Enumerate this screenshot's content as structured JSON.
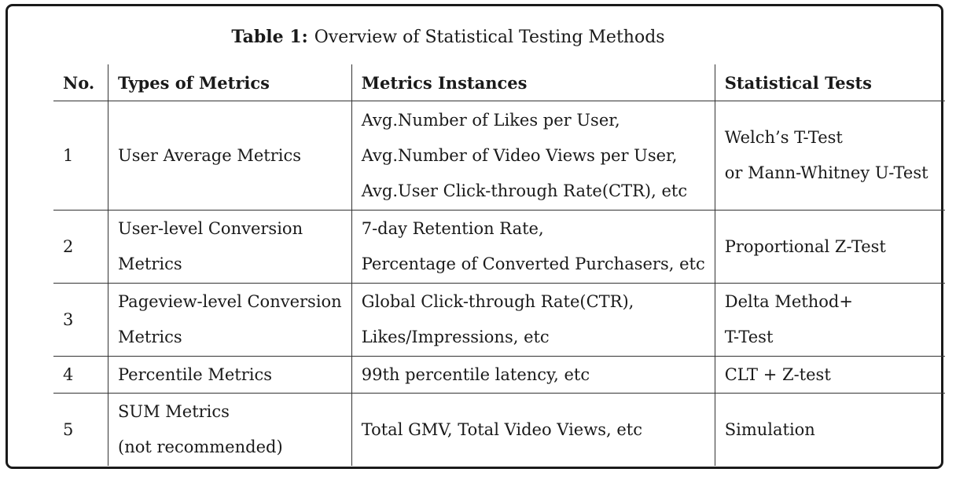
{
  "caption": {
    "label": "Table 1:",
    "title": "Overview of Statistical Testing Methods"
  },
  "headers": {
    "no": "No.",
    "type": "Types of Metrics",
    "instances": "Metrics Instances",
    "tests": "Statistical Tests"
  },
  "rows": [
    {
      "no": "1",
      "type": [
        "User Average Metrics"
      ],
      "instances": [
        "Avg.Number of Likes per User,",
        "Avg.Number of Video Views per User,",
        "Avg.User Click-through Rate(CTR), etc"
      ],
      "tests": [
        "Welch’s T-Test",
        "or Mann-Whitney U-Test"
      ]
    },
    {
      "no": "2",
      "type": [
        "User-level Conversion",
        "Metrics"
      ],
      "instances": [
        "7-day Retention Rate,",
        "Percentage of Converted Purchasers, etc"
      ],
      "tests": [
        "Proportional Z-Test"
      ]
    },
    {
      "no": "3",
      "type": [
        "Pageview-level Conversion",
        "Metrics"
      ],
      "instances": [
        "Global Click-through Rate(CTR),",
        "Likes/Impressions, etc"
      ],
      "tests": [
        "Delta Method+",
        "T-Test"
      ]
    },
    {
      "no": "4",
      "type": [
        "Percentile Metrics"
      ],
      "instances": [
        "99th percentile latency, etc"
      ],
      "tests": [
        "CLT + Z-test"
      ]
    },
    {
      "no": "5",
      "type": [
        "SUM Metrics",
        "(not recommended)"
      ],
      "instances": [
        "Total GMV, Total Video Views, etc"
      ],
      "tests": [
        "Simulation"
      ]
    }
  ]
}
